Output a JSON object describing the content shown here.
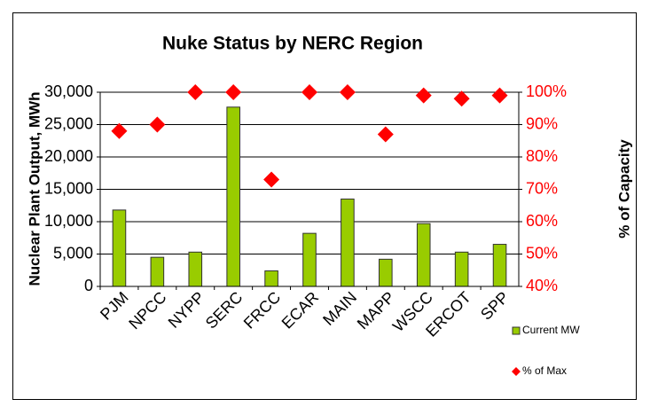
{
  "chart_data": {
    "type": "bar",
    "title": "Nuke Status by NERC Region",
    "y_label": "Nuclear Plant Output, MWh",
    "y2_label": "% of Capacity",
    "categories": [
      "PJM",
      "NPCC",
      "NYPP",
      "SERC",
      "FRCC",
      "ECAR",
      "MAIN",
      "MAPP",
      "WSCC",
      "ERCOT",
      "SPP"
    ],
    "series": [
      {
        "name": "Current MW",
        "type": "bar",
        "color": "#99cc00",
        "values": [
          11800,
          4500,
          5300,
          27700,
          2400,
          8200,
          13500,
          4200,
          9700,
          5300,
          6500
        ]
      },
      {
        "name": "% of Max",
        "type": "scatter",
        "axis": "y2",
        "color": "#ff0000",
        "values": [
          88,
          90,
          100,
          100,
          73,
          100,
          100,
          87,
          99,
          98,
          99
        ]
      }
    ],
    "ylim": [
      0,
      30000
    ],
    "yticks": [
      0,
      {
        "value": 5000,
        "label": "5,000"
      },
      {
        "value": 10000,
        "label": "10,000"
      },
      {
        "value": 15000,
        "label": "15,000"
      },
      {
        "value": 20000,
        "label": "20,000"
      },
      {
        "value": 25000,
        "label": "25,000"
      },
      {
        "value": 30000,
        "label": "30,000"
      }
    ],
    "y2lim": [
      40,
      100
    ],
    "y2ticks": [
      {
        "value": 40,
        "label": "40%"
      },
      {
        "value": 50,
        "label": "50%"
      },
      {
        "value": 60,
        "label": "60%"
      },
      {
        "value": 70,
        "label": "70%"
      },
      {
        "value": 80,
        "label": "80%"
      },
      {
        "value": 90,
        "label": "90%"
      },
      {
        "value": 100,
        "label": "100%"
      }
    ],
    "grid": true,
    "legend": "lower right"
  }
}
